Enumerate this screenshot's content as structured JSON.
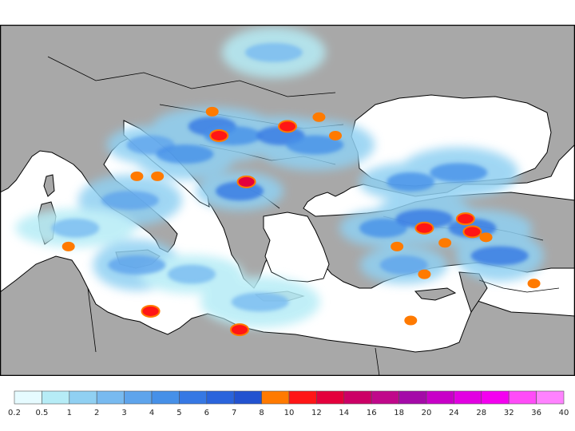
{
  "map": {
    "land_color": "#a8a8a8",
    "sea_color": "#ffffff",
    "border_color": "#000000"
  },
  "legend": {
    "colors": [
      "#e6fbff",
      "#b6ecf6",
      "#90d0f2",
      "#78baf0",
      "#5ea4ec",
      "#4690e8",
      "#3678e4",
      "#2a64dc",
      "#2252d0",
      "#ff7a00",
      "#ff1616",
      "#e4003c",
      "#cc0066",
      "#c0088a",
      "#a40aa8",
      "#c800c8",
      "#e200e2",
      "#f400f0",
      "#ff4cf8",
      "#ff82ff"
    ],
    "labels": [
      "0.2",
      "0.5",
      "1",
      "2",
      "3",
      "4",
      "5",
      "6",
      "7",
      "8",
      "10",
      "12",
      "14",
      "16",
      "18",
      "20",
      "24",
      "28",
      "32",
      "36",
      "40"
    ]
  },
  "precip_cells": [
    {
      "lon": 16.0,
      "lat": 42.5,
      "level": 3
    },
    {
      "lon": 18.5,
      "lat": 42.0,
      "level": 4
    },
    {
      "lon": 20.5,
      "lat": 43.5,
      "level": 5
    },
    {
      "lon": 22.0,
      "lat": 43.0,
      "level": 4
    },
    {
      "lon": 25.5,
      "lat": 43.0,
      "level": 5
    },
    {
      "lon": 28.0,
      "lat": 42.5,
      "level": 4
    },
    {
      "lon": 22.5,
      "lat": 40.0,
      "level": 5
    },
    {
      "lon": 14.5,
      "lat": 39.5,
      "level": 3
    },
    {
      "lon": 10.5,
      "lat": 38.0,
      "level": 2
    },
    {
      "lon": 15.0,
      "lat": 36.0,
      "level": 3
    },
    {
      "lon": 19.0,
      "lat": 35.5,
      "level": 2
    },
    {
      "lon": 24.0,
      "lat": 34.0,
      "level": 2
    },
    {
      "lon": 33.0,
      "lat": 38.0,
      "level": 4
    },
    {
      "lon": 36.0,
      "lat": 38.5,
      "level": 5
    },
    {
      "lon": 39.5,
      "lat": 38.0,
      "level": 5
    },
    {
      "lon": 41.5,
      "lat": 36.5,
      "level": 5
    },
    {
      "lon": 35.0,
      "lat": 40.5,
      "level": 4
    },
    {
      "lon": 38.5,
      "lat": 41.0,
      "level": 4
    },
    {
      "lon": 34.5,
      "lat": 36.0,
      "level": 3
    },
    {
      "lon": 25.0,
      "lat": 47.5,
      "level": 2
    }
  ],
  "hotspots": [
    {
      "lon": 26.0,
      "lat": 43.5,
      "level": 10
    },
    {
      "lon": 21.0,
      "lat": 43.0,
      "level": 10
    },
    {
      "lon": 23.0,
      "lat": 40.5,
      "level": 11
    },
    {
      "lon": 20.5,
      "lat": 44.3,
      "level": 9
    },
    {
      "lon": 28.3,
      "lat": 44.0,
      "level": 9
    },
    {
      "lon": 29.5,
      "lat": 43.0,
      "level": 9
    },
    {
      "lon": 16.5,
      "lat": 40.8,
      "level": 9
    },
    {
      "lon": 15.0,
      "lat": 40.8,
      "level": 9
    },
    {
      "lon": 10.0,
      "lat": 37.0,
      "level": 9
    },
    {
      "lon": 16.0,
      "lat": 33.5,
      "level": 10
    },
    {
      "lon": 22.5,
      "lat": 32.5,
      "level": 10
    },
    {
      "lon": 36.0,
      "lat": 38.0,
      "level": 10
    },
    {
      "lon": 39.0,
      "lat": 38.5,
      "level": 10
    },
    {
      "lon": 39.5,
      "lat": 37.8,
      "level": 10
    },
    {
      "lon": 40.5,
      "lat": 37.5,
      "level": 9
    },
    {
      "lon": 37.5,
      "lat": 37.2,
      "level": 9
    },
    {
      "lon": 34.0,
      "lat": 37.0,
      "level": 9
    },
    {
      "lon": 36.0,
      "lat": 35.5,
      "level": 9
    },
    {
      "lon": 44.0,
      "lat": 35.0,
      "level": 9
    },
    {
      "lon": 35.0,
      "lat": 33.0,
      "level": 9
    }
  ]
}
